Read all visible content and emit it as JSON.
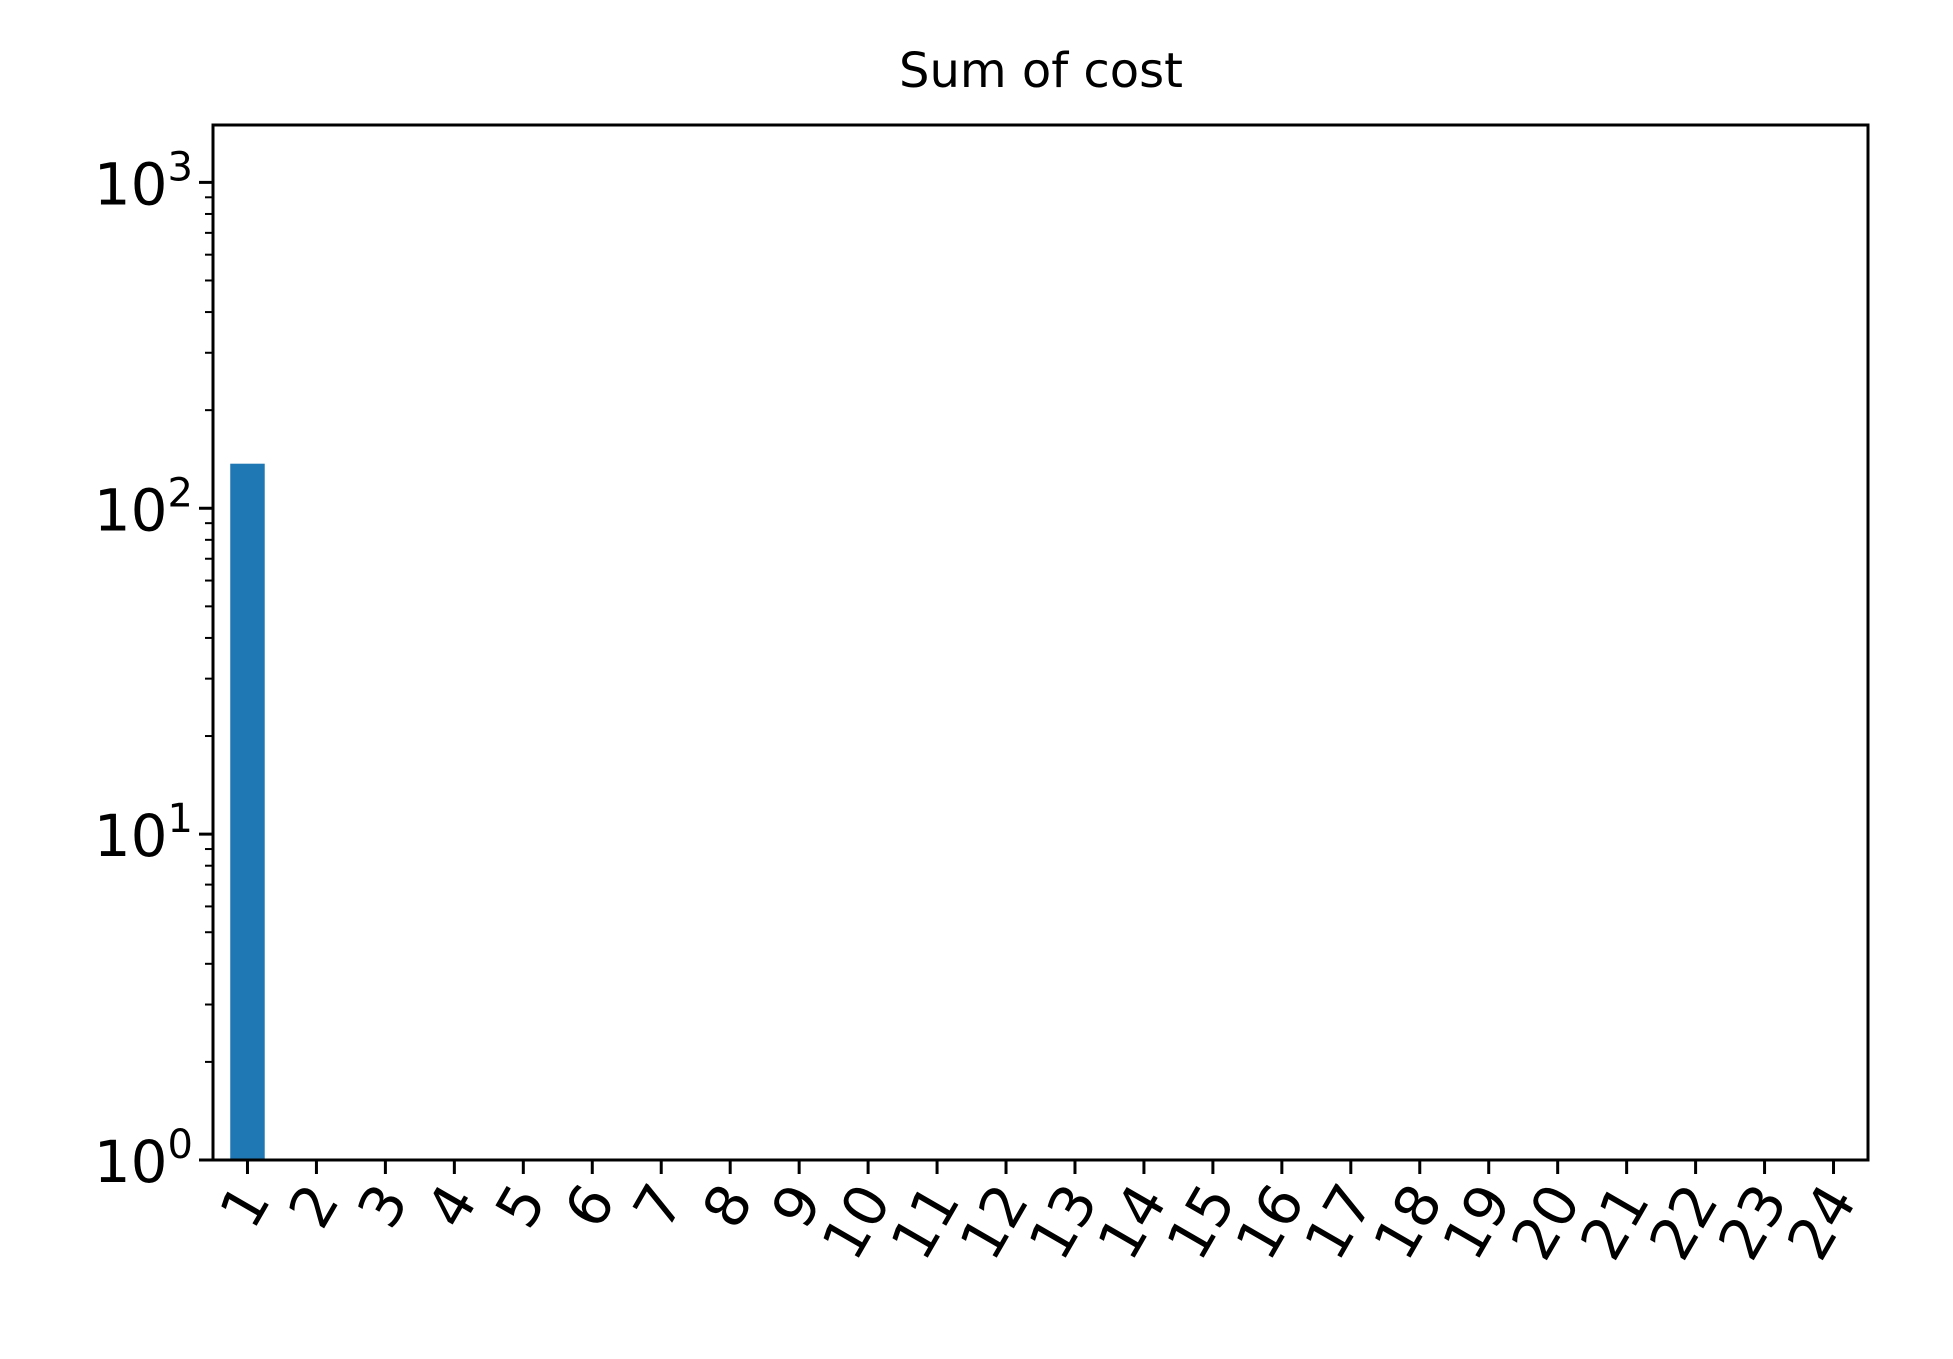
{
  "chart_data": {
    "type": "bar",
    "title": "Sum of cost",
    "xlabel": "",
    "ylabel": "",
    "y_scale": "log",
    "ylim": [
      1,
      1500
    ],
    "grid": false,
    "legend": "none",
    "categories": [
      "1",
      "2",
      "3",
      "4",
      "5",
      "6",
      "7",
      "8",
      "9",
      "10",
      "11",
      "12",
      "13",
      "14",
      "15",
      "16",
      "17",
      "18",
      "19",
      "20",
      "21",
      "22",
      "23",
      "24"
    ],
    "values": [
      137,
      null,
      null,
      null,
      null,
      null,
      null,
      null,
      null,
      null,
      null,
      null,
      null,
      null,
      null,
      null,
      null,
      null,
      null,
      null,
      null,
      null,
      null,
      null
    ],
    "y_ticks": [
      {
        "value": 1,
        "base": "10",
        "exponent": "0"
      },
      {
        "value": 10,
        "base": "10",
        "exponent": "1"
      },
      {
        "value": 100,
        "base": "10",
        "exponent": "2"
      },
      {
        "value": 1000,
        "base": "10",
        "exponent": "3"
      }
    ],
    "bar_color": "#1f77b4"
  }
}
